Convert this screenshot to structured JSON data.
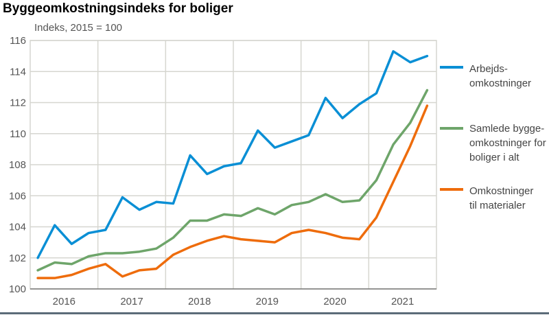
{
  "chart_data": {
    "type": "line",
    "title": "Byggeomkostningsindeks for boliger",
    "ylabel": "Indeks, 2015 = 100",
    "xlabel": "",
    "ylim": [
      100,
      116
    ],
    "yticks": [
      "100",
      "102",
      "104",
      "106",
      "108",
      "110",
      "112",
      "114",
      "116"
    ],
    "xticks": [
      "2016",
      "2017",
      "2018",
      "2019",
      "2020",
      "2021"
    ],
    "grid": true,
    "legend": "right",
    "points_per_year": 4,
    "series": [
      {
        "name": "Arbejds-\nomkostninger",
        "lines": [
          "Arbejds-",
          "omkostninger"
        ],
        "color": "#0a8fd5",
        "values": [
          102.0,
          104.1,
          102.9,
          103.6,
          103.8,
          105.9,
          105.1,
          105.6,
          105.5,
          108.6,
          107.4,
          107.9,
          108.1,
          110.2,
          109.1,
          109.5,
          109.9,
          112.3,
          111.0,
          111.9,
          112.6,
          115.3,
          114.6,
          115.0
        ]
      },
      {
        "name": "Samlede bygge-\nomkostninger for\nboliger i alt",
        "lines": [
          "Samlede bygge-",
          "omkostninger for",
          "boliger i alt"
        ],
        "color": "#6ea56a",
        "values": [
          101.2,
          101.7,
          101.6,
          102.1,
          102.3,
          102.3,
          102.4,
          102.6,
          103.3,
          104.4,
          104.4,
          104.8,
          104.7,
          105.2,
          104.8,
          105.4,
          105.6,
          106.1,
          105.6,
          105.7,
          107.0,
          109.3,
          110.7,
          112.8
        ]
      },
      {
        "name": "Omkostninger\ntil materialer",
        "lines": [
          "Omkostninger",
          "til materialer"
        ],
        "color": "#ee6c0c",
        "values": [
          100.7,
          100.7,
          100.9,
          101.3,
          101.6,
          100.8,
          101.2,
          101.3,
          102.2,
          102.7,
          103.1,
          103.4,
          103.2,
          103.1,
          103.0,
          103.6,
          103.8,
          103.6,
          103.3,
          103.2,
          104.6,
          106.9,
          109.2,
          111.8
        ]
      }
    ]
  }
}
